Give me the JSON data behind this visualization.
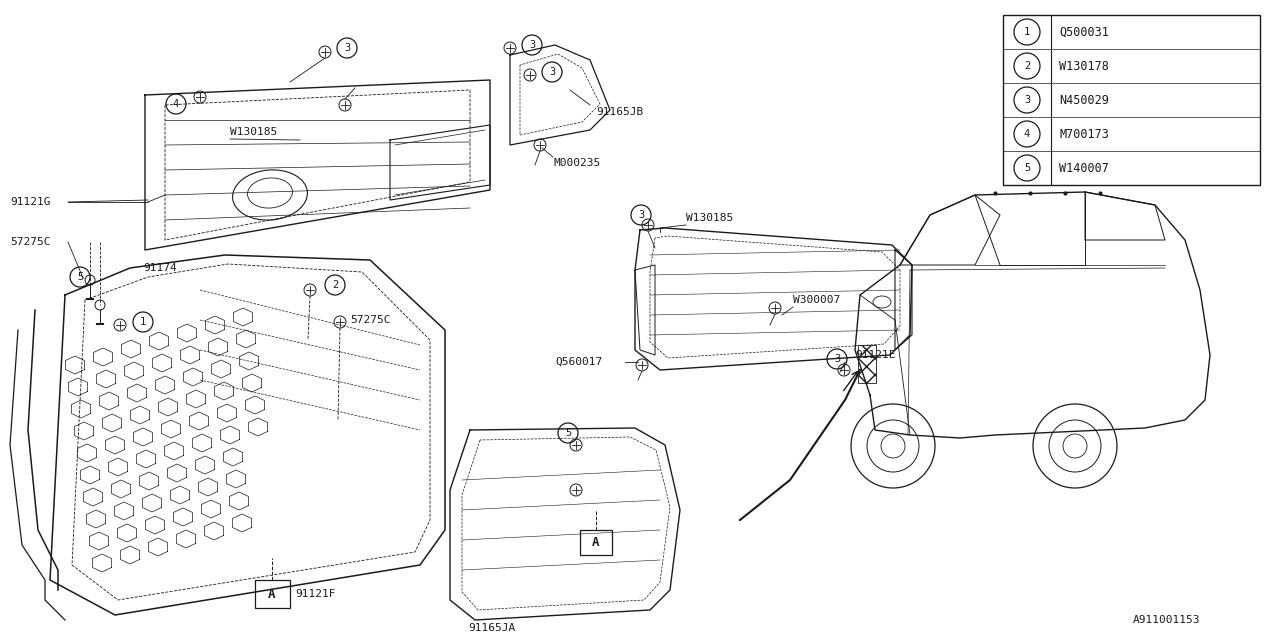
{
  "bg_color": "#ffffff",
  "line_color": "#1a1a1a",
  "legend_items": [
    {
      "num": "1",
      "code": "Q500031"
    },
    {
      "num": "2",
      "code": "W130178"
    },
    {
      "num": "3",
      "code": "N450029"
    },
    {
      "num": "4",
      "code": "M700173"
    },
    {
      "num": "5",
      "code": "W140007"
    }
  ],
  "diagram_id": "A911001153",
  "figsize": [
    12.8,
    6.4
  ],
  "dpi": 100
}
